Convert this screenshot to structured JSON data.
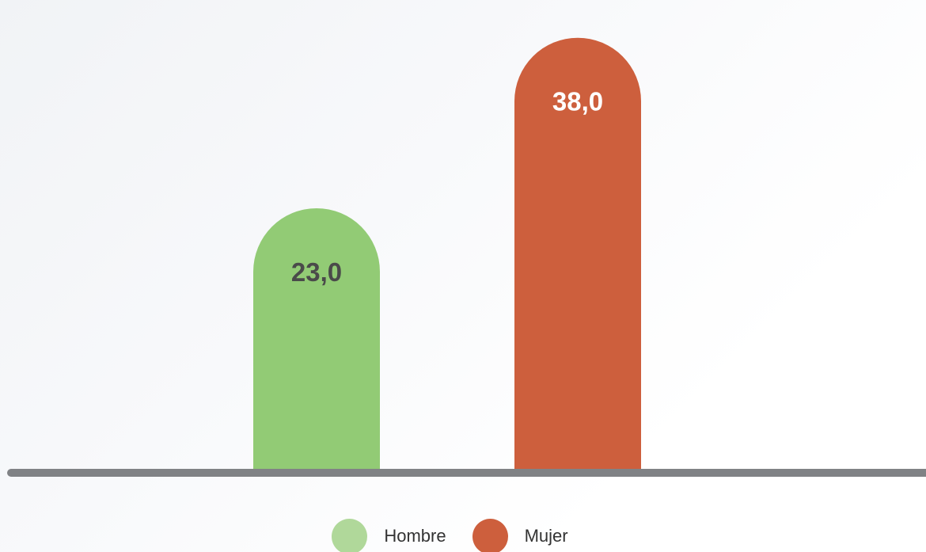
{
  "chart_data": {
    "type": "bar",
    "categories": [
      "Hombre",
      "Mujer"
    ],
    "values": [
      23.0,
      38.0
    ],
    "value_labels": [
      "23,0",
      "38,0"
    ],
    "colors": [
      "#92cb75",
      "#cd5f3d"
    ],
    "label_colors": [
      "#4a4a4a",
      "#ffffff"
    ],
    "legend_colors": [
      "#b0d89a",
      "#cd5f3d"
    ],
    "axis_color": "#808285",
    "ylim": [
      0,
      40
    ],
    "title": "",
    "xlabel": "",
    "ylabel": "",
    "grid": false,
    "legend_position": "bottom-center"
  }
}
